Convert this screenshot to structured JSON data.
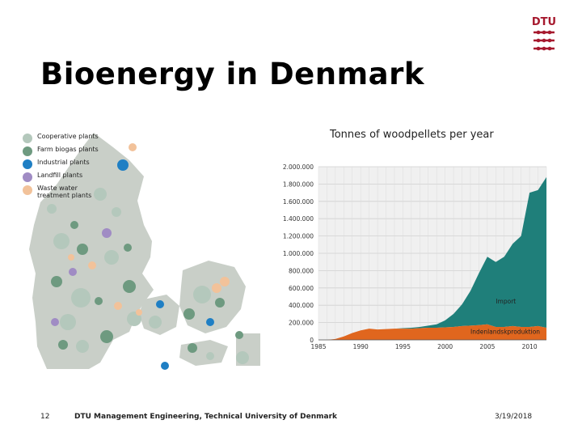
{
  "slide": {
    "title": "Bioenergy in Denmark",
    "page_number": "12",
    "footer_org": "DTU Management Engineering, Technical University of Denmark",
    "date": "3/19/2018",
    "logo_text": "DTU",
    "logo_color": "#a6192e"
  },
  "map": {
    "legend": [
      {
        "label": "Cooperative plants",
        "color": "#b4c8bc"
      },
      {
        "label": "Farm biogas plants",
        "color": "#6e9a80"
      },
      {
        "label": "Industrial plants",
        "color": "#1f7fc4"
      },
      {
        "label": "Landfill plants",
        "color": "#a08cc4"
      },
      {
        "label": "Waste water treatment plants",
        "color": "#f2c29a"
      }
    ],
    "land_color": "#c9cfc8",
    "sea_color": "#ffffff"
  },
  "chart_title": "Tonnes of woodpellets per year",
  "chart_data": {
    "type": "area",
    "title": "Tonnes of woodpellets per year",
    "x": [
      1985,
      1986,
      1987,
      1988,
      1989,
      1990,
      1991,
      1992,
      1993,
      1994,
      1995,
      1996,
      1997,
      1998,
      1999,
      2000,
      2001,
      2002,
      2003,
      2004,
      2005,
      2006,
      2007,
      2008,
      2009,
      2010,
      2011,
      2012
    ],
    "series": [
      {
        "name": "Indenlandsk produktion",
        "color": "#e0661e",
        "values": [
          0,
          0,
          10000,
          40000,
          80000,
          110000,
          130000,
          120000,
          125000,
          130000,
          130000,
          130000,
          135000,
          140000,
          140000,
          145000,
          150000,
          160000,
          165000,
          170000,
          180000,
          150000,
          150000,
          160000,
          150000,
          150000,
          160000,
          140000
        ]
      },
      {
        "name": "Import",
        "color": "#1f7f7a",
        "values": [
          0,
          0,
          0,
          0,
          0,
          0,
          0,
          0,
          0,
          0,
          5000,
          10000,
          15000,
          25000,
          40000,
          80000,
          150000,
          250000,
          400000,
          600000,
          780000,
          750000,
          810000,
          950000,
          1050000,
          1550000,
          1570000,
          1740000
        ]
      }
    ],
    "ylim": [
      0,
      2000000
    ],
    "xlim": [
      1985,
      2012
    ],
    "yticks": [
      "0",
      "200.000",
      "400.000",
      "600.000",
      "800.000",
      "1.000.000",
      "1.200.000",
      "1.400.000",
      "1.600.000",
      "1.800.000",
      "2.000.000"
    ],
    "ytick_values": [
      0,
      200000,
      400000,
      600000,
      800000,
      1000000,
      1200000,
      1400000,
      1600000,
      1800000,
      2000000
    ],
    "xticks": [
      "1985",
      "1990",
      "1995",
      "2000",
      "2005",
      "2010"
    ],
    "xtick_values": [
      1985,
      1990,
      1995,
      2000,
      2005,
      2010
    ],
    "annotations": [
      {
        "text": "Import",
        "x": 2006,
        "y": 420000
      },
      {
        "text": "Indenlandskproduktion",
        "x": 2003,
        "y": 70000
      }
    ],
    "grid": true,
    "plot_bg": "#f0f0f0"
  }
}
